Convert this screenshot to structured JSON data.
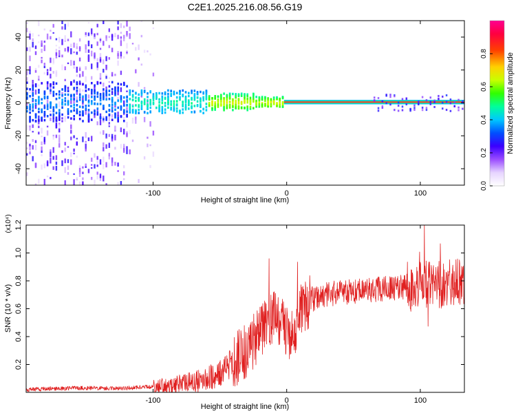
{
  "figure": {
    "title": "C2E1.2025.216.08.56.G19"
  },
  "chart_data": [
    {
      "type": "heatmap",
      "xlabel": "Height of straight line (km)",
      "ylabel": "Frequency (Hz)",
      "xlim": [
        -195,
        133
      ],
      "ylim": [
        -50,
        50
      ],
      "xticks": [
        -100,
        0,
        100
      ],
      "yticks": [
        -40,
        -20,
        0,
        20,
        40
      ],
      "grid": false,
      "colorbar": {
        "label": "Normalized spectral amplitude",
        "range": [
          0.0,
          1.0
        ],
        "ticks": [
          "0.0",
          "0.2",
          "0.4",
          "0.6",
          "0.8"
        ],
        "colormap": [
          "#f4ecff",
          "#c79bff",
          "#6a00ff",
          "#0000ff",
          "#00c8ff",
          "#00ff80",
          "#80ff00",
          "#ffff00",
          "#ff8000",
          "#ff0000",
          "#ff0080"
        ]
      },
      "features": {
        "noise_region_x": [
          -195,
          -120
        ],
        "main_trace_freq_hz": 0.5,
        "strong_trace_x": [
          -2,
          133
        ],
        "gap_x": [
          35,
          65
        ]
      }
    },
    {
      "type": "line",
      "xlabel": "Height of straight line (km)",
      "ylabel": "SNR (10 * v/v)",
      "y_multiplier": "(x10⁴)",
      "xlim": [
        -195,
        133
      ],
      "ylim": [
        0.0,
        1.2
      ],
      "xticks": [
        -100,
        0,
        100
      ],
      "yticks": [
        "0.2",
        "0.4",
        "0.6",
        "0.8",
        "1.0",
        "1.2"
      ],
      "series": [
        {
          "color": "#e02020",
          "x": [
            -195,
            -180,
            -160,
            -140,
            -120,
            -100,
            -80,
            -60,
            -50,
            -40,
            -30,
            -25,
            -20,
            -15,
            -10,
            -5,
            0,
            5,
            10,
            15,
            20,
            30,
            40,
            50,
            60,
            70,
            80,
            90,
            100,
            110,
            120,
            133
          ],
          "y": [
            0.02,
            0.025,
            0.03,
            0.03,
            0.03,
            0.04,
            0.06,
            0.09,
            0.14,
            0.22,
            0.3,
            0.36,
            0.42,
            0.5,
            0.55,
            0.5,
            0.45,
            0.4,
            0.55,
            0.62,
            0.66,
            0.7,
            0.72,
            0.72,
            0.73,
            0.74,
            0.75,
            0.76,
            0.76,
            0.77,
            0.78,
            0.8
          ]
        }
      ]
    }
  ]
}
